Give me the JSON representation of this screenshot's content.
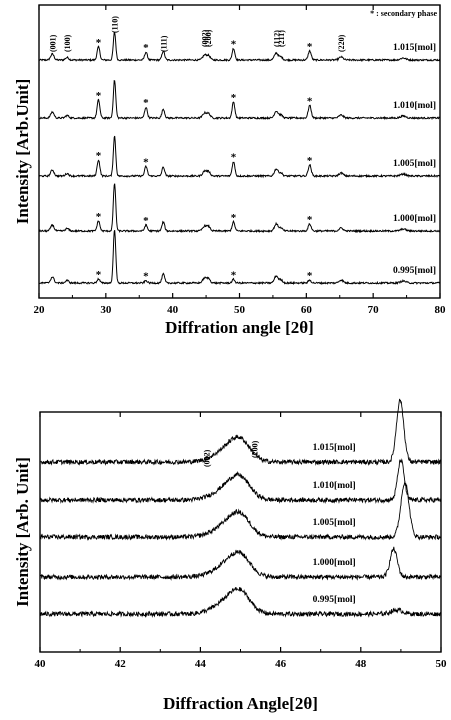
{
  "chart_data": [
    {
      "type": "line",
      "xlabel": "Diffration angle [2θ]",
      "ylabel": "Intensity [Arb.Unit]",
      "xlim": [
        20,
        80
      ],
      "xticks": [
        "20",
        "30",
        "40",
        "50",
        "60",
        "70",
        "80"
      ],
      "legend_note": "* : secondary phase",
      "grid": false,
      "series": [
        {
          "name": "1.015[mol]"
        },
        {
          "name": "1.010[mol]"
        },
        {
          "name": "1.005[mol]"
        },
        {
          "name": "1.000[mol]"
        },
        {
          "name": "0.995[mol]"
        }
      ],
      "main_peaks": [
        {
          "label": "(001)",
          "x": 22.0
        },
        {
          "label": "(100)",
          "x": 24.2
        },
        {
          "label": "(110)",
          "x": 31.3
        },
        {
          "label": "(111)",
          "x": 38.6
        },
        {
          "label": "(002)",
          "x": 44.8
        },
        {
          "label": "(200)",
          "x": 45.3
        },
        {
          "label": "(112)",
          "x": 55.5
        },
        {
          "label": "(211)",
          "x": 56.2
        },
        {
          "label": "(220)",
          "x": 65.2
        }
      ],
      "secondary_peaks_x": [
        28.9,
        36.0,
        49.1,
        60.5
      ]
    },
    {
      "type": "line",
      "xlabel": "Diffraction Angle[2θ]",
      "ylabel": "Intensity [Arb. Unit]",
      "xlim": [
        40,
        50
      ],
      "xticks": [
        "40",
        "42",
        "44",
        "46",
        "48",
        "50"
      ],
      "grid": false,
      "peak_labels": [
        "(002)",
        "(200)"
      ],
      "series": [
        {
          "name": "1.015[mol]"
        },
        {
          "name": "1.010[mol]"
        },
        {
          "name": "1.005[mol]"
        },
        {
          "name": "1.000[mol]"
        },
        {
          "name": "0.995[mol]"
        }
      ]
    }
  ]
}
